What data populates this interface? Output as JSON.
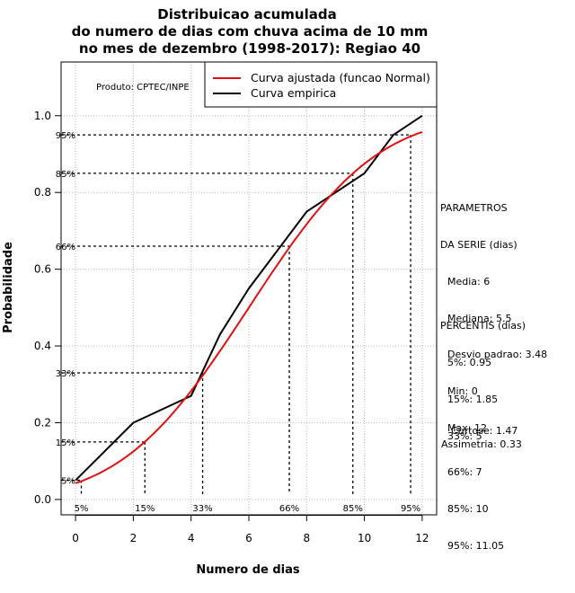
{
  "chart_data": {
    "type": "line",
    "title": [
      "Distribuicao acumulada",
      "do numero de dias com chuva acima de 10 mm",
      "no mes de dezembro (1998-2017): Regiao 40"
    ],
    "xlabel": "Numero de dias",
    "ylabel": "Probabilidade",
    "xlim": [
      -0.5,
      12.5
    ],
    "ylim": [
      -0.04,
      1.14
    ],
    "xticks": [
      0,
      2,
      4,
      6,
      8,
      10,
      12
    ],
    "yticks": [
      0.0,
      0.2,
      0.4,
      0.6,
      0.8,
      1.0
    ],
    "xtick_labels": [
      "0",
      "2",
      "4",
      "6",
      "8",
      "10",
      "12"
    ],
    "ytick_labels": [
      "0.0",
      "0.2",
      "0.4",
      "0.6",
      "0.8",
      "1.0"
    ],
    "grid": true,
    "product": "Produto: CPTEC/INPE",
    "legend": [
      {
        "label": "Curva ajustada (funcao Normal)",
        "color": "#e01010"
      },
      {
        "label": "Curva empirica",
        "color": "#000000"
      }
    ],
    "series": [
      {
        "name": "Curva empirica",
        "color": "#000000",
        "x": [
          0,
          2,
          4,
          5,
          6,
          8,
          10,
          11,
          12
        ],
        "y": [
          0.05,
          0.2,
          0.27,
          0.43,
          0.55,
          0.75,
          0.85,
          0.95,
          1.0
        ]
      },
      {
        "name": "Curva ajustada (funcao Normal)",
        "color": "#e01010",
        "distribution": "normal",
        "mean": 6,
        "sd": 3.48,
        "x_range": [
          0,
          12
        ]
      }
    ],
    "percentiles": [
      {
        "prob": 0.05,
        "value": 0.2,
        "ylabel": "5%",
        "xlabel": "5%"
      },
      {
        "prob": 0.15,
        "value": 2.4,
        "ylabel": "15%",
        "xlabel": "15%"
      },
      {
        "prob": 0.33,
        "value": 4.4,
        "ylabel": "33%",
        "xlabel": "33%"
      },
      {
        "prob": 0.66,
        "value": 7.4,
        "ylabel": "66%",
        "xlabel": "66%"
      },
      {
        "prob": 0.85,
        "value": 9.6,
        "ylabel": "85%",
        "xlabel": "85%"
      },
      {
        "prob": 0.95,
        "value": 11.6,
        "ylabel": "95%",
        "xlabel": "95%"
      }
    ]
  },
  "side_panel": {
    "params_title": [
      "PARAMETROS",
      "DA SERIE (dias)"
    ],
    "params": [
      "Media: 6",
      "Mediana: 5.5",
      "Desvio padrao: 3.48",
      "Min: 0",
      "Max: 12"
    ],
    "percentis_title": "PERCENTIS (dias)",
    "percentis": [
      "5%: 0.95",
      "15%: 1.85",
      "33%: 5",
      "66%: 7",
      "85%: 10",
      "95%: 11.05"
    ],
    "curtose": "Curtose: 1.47",
    "assimetria": "Assimetria: 0.33"
  }
}
